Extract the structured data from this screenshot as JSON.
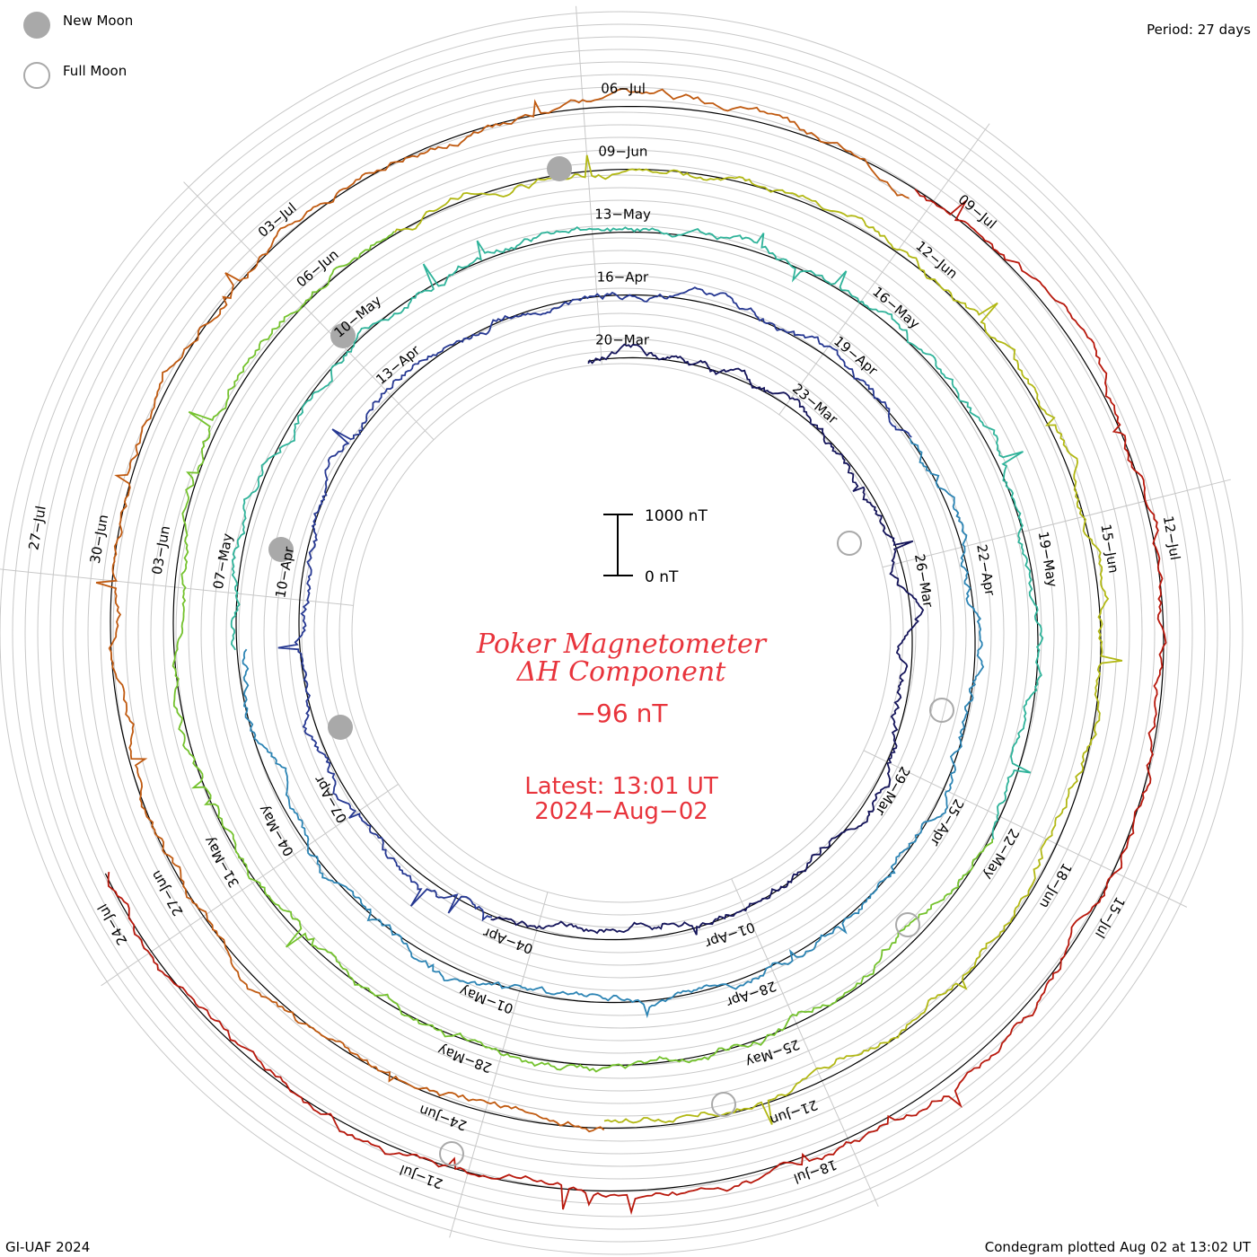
{
  "header": {
    "period": "Period: 27 days",
    "legend": [
      {
        "label": "New Moon",
        "symbol": "filled-circle",
        "color": "#a9a9a9"
      },
      {
        "label": "Full Moon",
        "symbol": "open-circle",
        "color": "#a9a9a9"
      }
    ]
  },
  "center": {
    "title_line1": "Poker Magnetometer",
    "title_line2": "ΔH Component",
    "value": "−96 nT",
    "latest_line1": "Latest: 13:01 UT",
    "latest_line2": "2024−Aug−02"
  },
  "scale_bar": {
    "top_label": "1000 nT",
    "bottom_label": "0 nT"
  },
  "footer": {
    "left": "GI-UAF 2024",
    "right": "Condegram plotted Aug 02 at 13:02 UT"
  },
  "chart_data": {
    "type": "line",
    "description_free": true,
    "period_days": 27,
    "rotations": [
      {
        "color": "#14145a",
        "date_labels": [
          "20−Mar",
          "23−Mar",
          "26−Mar",
          "29−Mar",
          "01−Apr",
          "04−Apr",
          "07−Apr",
          "10−Apr",
          "13−Apr"
        ]
      },
      {
        "color": "#2d3aa0",
        "date_labels": [
          "16−Apr",
          "19−Apr",
          "22−Apr",
          "25−Apr",
          "28−Apr",
          "01−May",
          "04−May",
          "07−May",
          "10−May"
        ]
      },
      {
        "color": "#2f9bb2",
        "date_labels": [
          "13−May",
          "16−May",
          "19−May",
          "22−May",
          "25−May",
          "28−May",
          "31−May",
          "03−Jun",
          "06−Jun"
        ]
      },
      {
        "color": "#7ec33a",
        "date_labels": [
          "09−Jun",
          "12−Jun",
          "15−Jun",
          "18−Jun",
          "21−Jun",
          "24−Jun",
          "27−Jun",
          "30−Jun",
          "03−Jul"
        ]
      },
      {
        "color": "#c2471c",
        "date_labels": [
          "06−Jul",
          "09−Jul",
          "12−Jul",
          "15−Jul",
          "18−Jul",
          "21−Jul",
          "24−Jul",
          "27−Jul"
        ]
      }
    ],
    "series_colors": [
      "#14145a",
      "#263892",
      "#2c84b4",
      "#2fb39a",
      "#74c22d",
      "#b2b814",
      "#c05a10",
      "#b8180c"
    ]
  }
}
